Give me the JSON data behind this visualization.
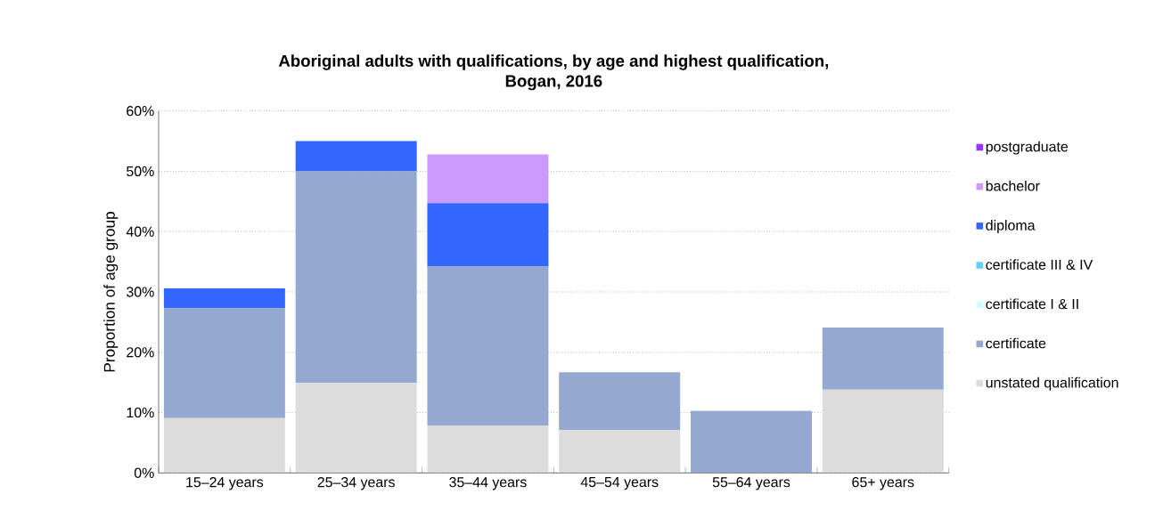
{
  "chart_data": {
    "type": "bar",
    "stacked": true,
    "title": "Aboriginal adults with qualifications, by age and highest qualification,\nBogan, 2016",
    "ylabel": "Proportion of age group",
    "categories": [
      "15–24 years",
      "25–34 years",
      "35–44 years",
      "45–54 years",
      "55–64 years",
      "65+ years"
    ],
    "series": [
      {
        "name": "unstated qualification",
        "color": "#dcdcdc",
        "values": [
          9.1,
          14.9,
          7.8,
          7.1,
          0,
          13.8
        ]
      },
      {
        "name": "certificate",
        "color": "#95a9d0",
        "values": [
          18.2,
          35.1,
          26.4,
          9.6,
          10.3,
          10.3
        ]
      },
      {
        "name": "certificate I & II",
        "color": "#ccffff",
        "values": [
          0,
          0,
          0,
          0,
          0,
          0
        ]
      },
      {
        "name": "certificate III & IV",
        "color": "#66ccff",
        "values": [
          0,
          0,
          0,
          0,
          0,
          0
        ]
      },
      {
        "name": "diploma",
        "color": "#3366ff",
        "values": [
          3.3,
          5.0,
          10.5,
          0,
          0,
          0
        ]
      },
      {
        "name": "bachelor",
        "color": "#cc99ff",
        "values": [
          0,
          0,
          8.1,
          0,
          0,
          0
        ]
      },
      {
        "name": "postgraduate",
        "color": "#9933ff",
        "values": [
          0,
          0,
          0,
          0,
          0,
          0
        ]
      }
    ],
    "ylim": [
      0,
      60
    ],
    "yticks": [
      {
        "value": 0,
        "label": "0%"
      },
      {
        "value": 10,
        "label": "10%"
      },
      {
        "value": 20,
        "label": "20%"
      },
      {
        "value": 30,
        "label": "30%"
      },
      {
        "value": 40,
        "label": "40%"
      },
      {
        "value": 50,
        "label": "50%"
      },
      {
        "value": 60,
        "label": "60%"
      }
    ],
    "grid": "y",
    "legend": "right"
  }
}
